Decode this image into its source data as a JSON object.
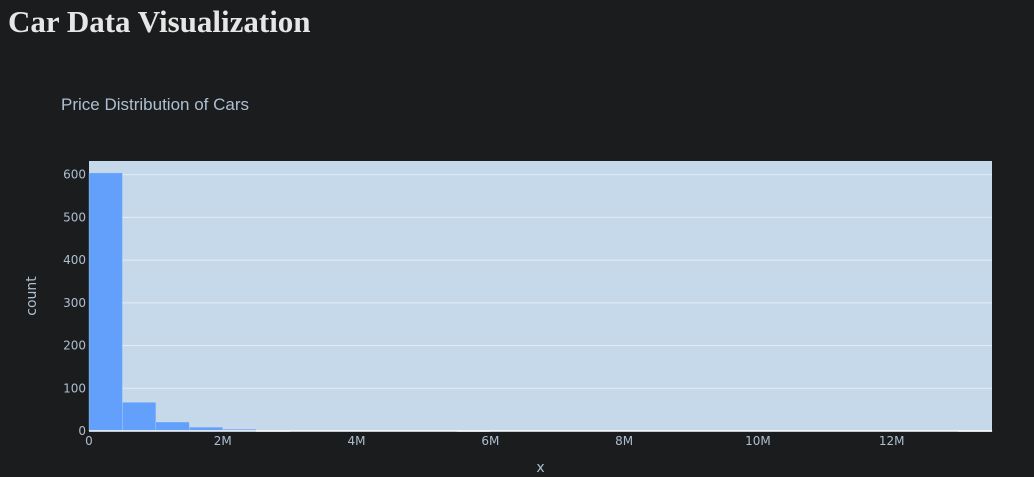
{
  "page": {
    "heading": "Car Data Visualization"
  },
  "chart_data": {
    "type": "bar",
    "title": "Price Distribution of Cars",
    "xlabel": "x",
    "ylabel": "count",
    "xlim": [
      0,
      13500000
    ],
    "ylim": [
      0,
      632
    ],
    "x_ticks": [
      {
        "value": 0,
        "label": "0"
      },
      {
        "value": 2000000,
        "label": "2M"
      },
      {
        "value": 4000000,
        "label": "4M"
      },
      {
        "value": 6000000,
        "label": "6M"
      },
      {
        "value": 8000000,
        "label": "8M"
      },
      {
        "value": 10000000,
        "label": "10M"
      },
      {
        "value": 12000000,
        "label": "12M"
      }
    ],
    "y_ticks": [
      {
        "value": 0,
        "label": "0"
      },
      {
        "value": 100,
        "label": "100"
      },
      {
        "value": 200,
        "label": "200"
      },
      {
        "value": 300,
        "label": "300"
      },
      {
        "value": 400,
        "label": "400"
      },
      {
        "value": 500,
        "label": "500"
      },
      {
        "value": 600,
        "label": "600"
      }
    ],
    "bins": [
      {
        "x0": 0,
        "x1": 500000,
        "count": 604
      },
      {
        "x0": 500000,
        "x1": 1000000,
        "count": 67
      },
      {
        "x0": 1000000,
        "x1": 1500000,
        "count": 21
      },
      {
        "x0": 1500000,
        "x1": 2000000,
        "count": 9
      },
      {
        "x0": 2000000,
        "x1": 2500000,
        "count": 4
      },
      {
        "x0": 2500000,
        "x1": 3000000,
        "count": 1
      },
      {
        "x0": 5500000,
        "x1": 6000000,
        "count": 1
      },
      {
        "x0": 13000000,
        "x1": 13500000,
        "count": 1
      }
    ],
    "grid": true,
    "colors": {
      "bar": "#62a0fc",
      "plot_background": "#c5d9ea",
      "gridline": "#e4edf5",
      "paper_background": "#1b1c1e",
      "text": "#aebfd1"
    }
  }
}
